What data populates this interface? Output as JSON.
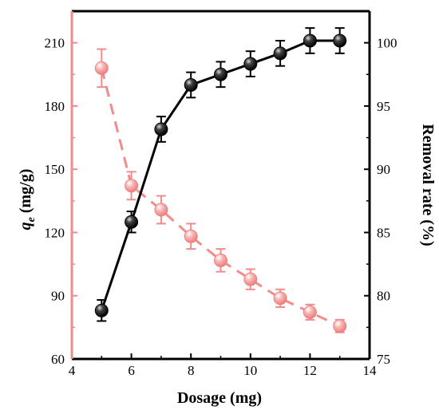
{
  "chart_data": {
    "type": "line",
    "xlabel": "Dosage (mg)",
    "ylabel_left": {
      "main": "q",
      "sub": "e",
      "rest": " (mg/g)"
    },
    "ylabel_right": "Removal rate (%)",
    "xlim": [
      4,
      14
    ],
    "ylim_left": [
      60,
      225
    ],
    "ylim_right": [
      75,
      102.5
    ],
    "x_ticks": [
      "4",
      "6",
      "8",
      "10",
      "12",
      "14"
    ],
    "y_left_ticks": [
      "60",
      "90",
      "120",
      "150",
      "180",
      "210"
    ],
    "y_right_ticks": [
      "75",
      "80",
      "85",
      "90",
      "95",
      "100"
    ],
    "x_tick_values": [
      4,
      6,
      8,
      10,
      12,
      14
    ],
    "y_left_tick_values": [
      60,
      90,
      120,
      150,
      180,
      210
    ],
    "y_right_tick_values": [
      75,
      80,
      85,
      90,
      95,
      100
    ],
    "series": [
      {
        "axis": "left",
        "color": "#000000",
        "style": "solid",
        "x": [
          5,
          6,
          7,
          8,
          9,
          10,
          11,
          12,
          13
        ],
        "y": [
          83,
          125,
          169,
          190,
          195,
          200,
          205,
          211,
          211
        ],
        "err": [
          5,
          5,
          6,
          6,
          6,
          6,
          6,
          6,
          6
        ]
      },
      {
        "axis": "right",
        "color": "#f08c8c",
        "style": "dashed",
        "x": [
          5,
          6,
          7,
          8,
          9,
          10,
          11,
          12,
          13
        ],
        "y": [
          98,
          88.7,
          86.8,
          84.7,
          82.8,
          81.3,
          79.8,
          78.7,
          77.6
        ],
        "err": [
          1.5,
          1.1,
          1.1,
          1.0,
          0.9,
          0.8,
          0.7,
          0.6,
          0.5
        ]
      }
    ]
  }
}
